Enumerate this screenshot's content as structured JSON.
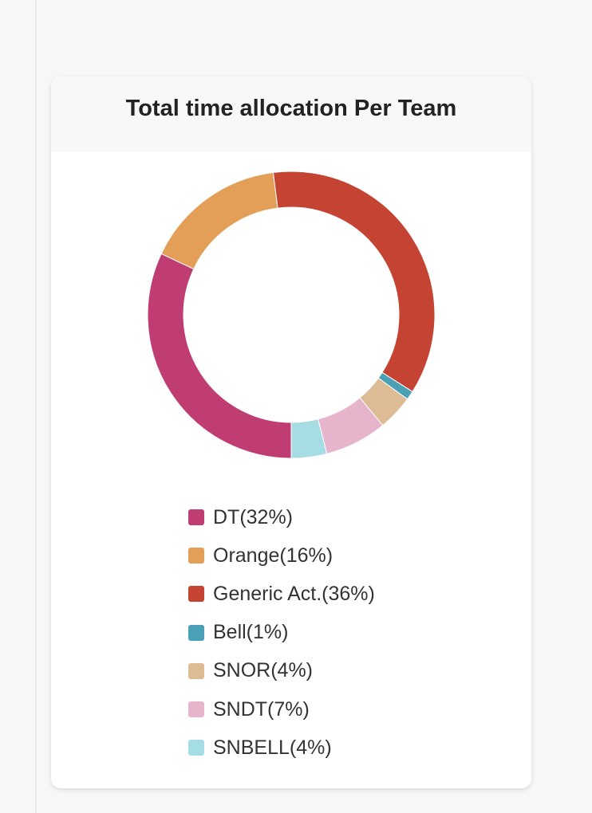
{
  "chart_data": {
    "type": "pie",
    "variant": "donut",
    "title": "Total time allocation Per Team",
    "legend_position": "bottom",
    "series": [
      {
        "name": "DT",
        "label": "DT(32%)",
        "value": 32,
        "color": "#c03d73"
      },
      {
        "name": "Orange",
        "label": "Orange(16%)",
        "value": 16,
        "color": "#e39f57"
      },
      {
        "name": "Generic Act.",
        "label": "Generic Act.(36%)",
        "value": 36,
        "color": "#c44333"
      },
      {
        "name": "Bell",
        "label": "Bell(1%)",
        "value": 1,
        "color": "#4aa0b5"
      },
      {
        "name": "SNOR",
        "label": "SNOR(4%)",
        "value": 4,
        "color": "#ddbb94"
      },
      {
        "name": "SNDT",
        "label": "SNDT(7%)",
        "value": 7,
        "color": "#e6b5cc"
      },
      {
        "name": "SNBELL",
        "label": "SNBELL(4%)",
        "value": 4,
        "color": "#a6dce4"
      }
    ]
  }
}
